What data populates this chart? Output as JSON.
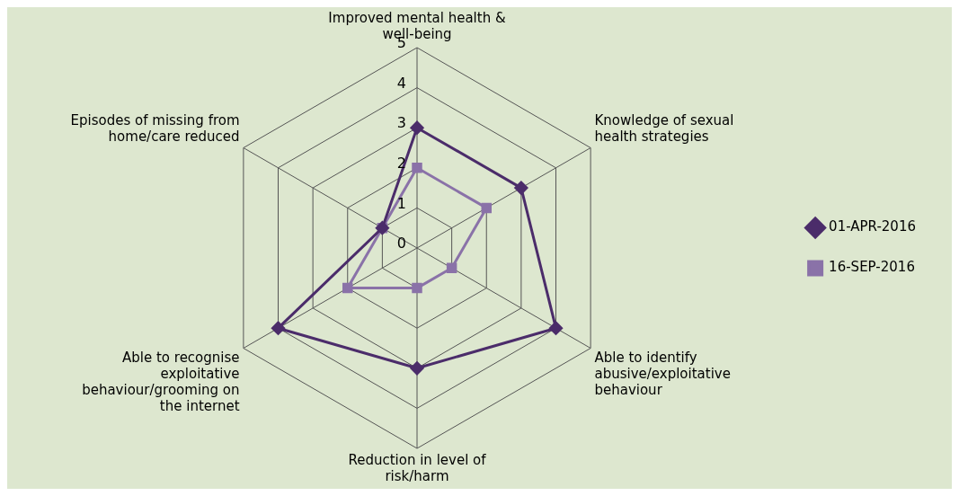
{
  "chart_data": {
    "type": "radar",
    "categories": [
      "Improved mental health & well-being",
      "Knowledge of sexual health strategies",
      "Able to identify abusive/exploitative behaviour",
      "Reduction in level of risk/harm",
      "Able to recognise exploitative behaviour/grooming on the internet",
      "Episodes of missing from home/care reduced"
    ],
    "series": [
      {
        "name": "01-APR-2016",
        "color": "#4b2c6a",
        "marker": "diamond",
        "values": [
          3,
          3,
          4,
          3,
          4,
          1
        ]
      },
      {
        "name": "16-SEP-2016",
        "color": "#8a72a8",
        "marker": "square",
        "values": [
          2,
          2,
          1,
          1,
          2,
          1
        ]
      }
    ],
    "ylim": [
      0,
      5
    ],
    "yticks": [
      0,
      1,
      2,
      3,
      4,
      5
    ],
    "grid": true,
    "legend": "right"
  }
}
